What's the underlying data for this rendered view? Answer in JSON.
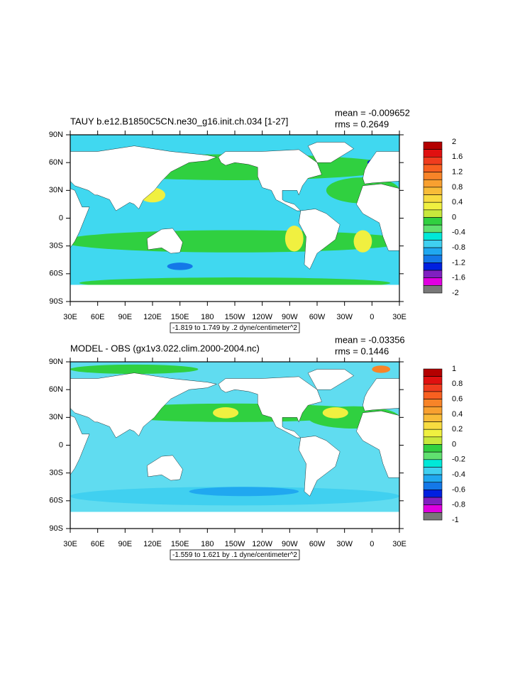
{
  "panels": [
    {
      "title": "TAUY b.e12.B1850C5CN.ne30_g16.init.ch.034 [1-27]",
      "mean": "mean = -0.009652",
      "rms": "rms = 0.2649",
      "note": "-1.819 to 1.749 by .2 dyne/centimeter^2",
      "colorbar": {
        "labels": [
          2,
          1.6,
          1.2,
          0.8,
          0.4,
          0,
          -0.4,
          -0.8,
          -1.2,
          -1.6,
          -2
        ],
        "colors": [
          "#b40000",
          "#e01010",
          "#f03c1e",
          "#f86020",
          "#f88428",
          "#f8a030",
          "#f8bc38",
          "#f8dc40",
          "#f0f040",
          "#c8e83c",
          "#30d040",
          "#60e070",
          "#00e8d8",
          "#40d0f0",
          "#20a8f0",
          "#1478e8",
          "#0020e0",
          "#8020c0",
          "#e000e0",
          "#787878"
        ]
      }
    },
    {
      "title": "MODEL - OBS (gx1v3.022.clim.2000-2004.nc)",
      "mean": "mean = -0.03356",
      "rms": "rms = 0.1446",
      "note": "-1.559 to 1.621 by .1 dyne/centimeter^2",
      "colorbar": {
        "labels": [
          1,
          0.8,
          0.6,
          0.4,
          0.2,
          0,
          -0.2,
          -0.4,
          -0.6,
          -0.8,
          -1
        ],
        "colors": [
          "#b40000",
          "#e01010",
          "#f03c1e",
          "#f86020",
          "#f88428",
          "#f8a030",
          "#f8bc38",
          "#f8dc40",
          "#f0f040",
          "#c8e83c",
          "#30d040",
          "#60e070",
          "#00e8d8",
          "#40d0f0",
          "#20a8f0",
          "#1478e8",
          "#0020e0",
          "#8020c0",
          "#e000e0",
          "#787878"
        ]
      }
    }
  ],
  "lat_labels": [
    "90N",
    "60N",
    "30N",
    "0",
    "30S",
    "60S",
    "90S"
  ],
  "lon_labels": [
    "30E",
    "60E",
    "90E",
    "120E",
    "150E",
    "180",
    "150W",
    "120W",
    "90W",
    "60W",
    "30W",
    "0",
    "30E"
  ]
}
